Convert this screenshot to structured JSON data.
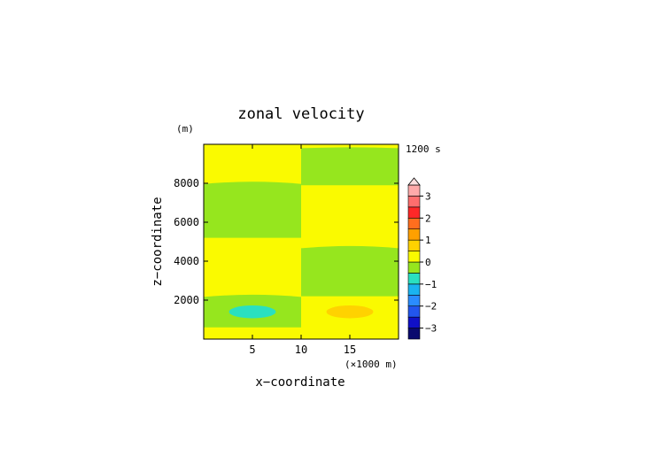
{
  "chart_data": {
    "type": "heatmap",
    "title": "zonal velocity",
    "time_label": "1200 s",
    "x_label": "x−coordinate",
    "x_unit": "(×1000 m)",
    "z_label": "z−coordinate",
    "z_unit": "(m)",
    "x_range": [
      0,
      20
    ],
    "z_range": [
      0,
      10000
    ],
    "x_ticks": [
      {
        "value": 5,
        "label": "5"
      },
      {
        "value": 10,
        "label": "10"
      },
      {
        "value": 15,
        "label": "15"
      }
    ],
    "z_ticks": [
      {
        "value": 2000,
        "label": "2000"
      },
      {
        "value": 4000,
        "label": "4000"
      },
      {
        "value": 6000,
        "label": "6000"
      },
      {
        "value": 8000,
        "label": "8000"
      }
    ],
    "contour_levels": [
      -3.5,
      -3.0,
      -2.5,
      -2.0,
      -1.5,
      -1.0,
      -0.5,
      0.0,
      0.5,
      1.0,
      1.5,
      2.0,
      2.5,
      3.0,
      3.5
    ],
    "colorbar_colors": [
      "#0a0a6e",
      "#1010c8",
      "#2255ee",
      "#2a8cff",
      "#1ab4f0",
      "#2ae0c0",
      "#96e61e",
      "#fafa00",
      "#ffd200",
      "#ffa000",
      "#ff6e1e",
      "#ff2828",
      "#ff6e6e",
      "#ffaaaa"
    ],
    "colorbar_ticks": [
      {
        "value": 3,
        "label": "3"
      },
      {
        "value": 2,
        "label": "2"
      },
      {
        "value": 1,
        "label": "1"
      },
      {
        "value": 0,
        "label": "0"
      },
      {
        "value": -1,
        "label": "−1"
      },
      {
        "value": -2,
        "label": "−2"
      },
      {
        "value": -3,
        "label": "−3"
      }
    ],
    "colorbar_extend_top": true,
    "field_regions": [
      {
        "level": "0 to 0.5",
        "color": "#fafa00",
        "x": [
          0,
          10
        ],
        "z": [
          0,
          600
        ]
      },
      {
        "level": "-0.5 to 0",
        "color": "#96e61e",
        "x": [
          0,
          10
        ],
        "z": [
          600,
          2300
        ]
      },
      {
        "level": "0 to 0.5",
        "color": "#fafa00",
        "x": [
          0,
          10
        ],
        "z": [
          2300,
          5200
        ]
      },
      {
        "level": "-0.5 to 0",
        "color": "#96e61e",
        "x": [
          0,
          10
        ],
        "z": [
          5200,
          8100
        ]
      },
      {
        "level": "0 to 0.5",
        "color": "#fafa00",
        "x": [
          0,
          10
        ],
        "z": [
          8100,
          9800
        ]
      },
      {
        "level": "0 to 0.5",
        "color": "#fafa00",
        "x": [
          10,
          20
        ],
        "z": [
          0,
          2200
        ]
      },
      {
        "level": "-0.5 to 0",
        "color": "#96e61e",
        "x": [
          10,
          20
        ],
        "z": [
          2200,
          4800
        ]
      },
      {
        "level": "0 to 0.5",
        "color": "#fafa00",
        "x": [
          10,
          20
        ],
        "z": [
          4800,
          7900
        ]
      },
      {
        "level": "-0.5 to 0",
        "color": "#96e61e",
        "x": [
          10,
          20
        ],
        "z": [
          7900,
          9800
        ]
      }
    ],
    "field_cells": [
      {
        "level": "-1 to -0.5",
        "color": "#2ae0c0",
        "x_center": 5,
        "z_center": 1400,
        "x_radius": 2.4,
        "z_radius": 330
      },
      {
        "level": "0.5 to 1",
        "color": "#ffd200",
        "x_center": 15,
        "z_center": 1400,
        "x_radius": 2.4,
        "z_radius": 330
      }
    ]
  }
}
